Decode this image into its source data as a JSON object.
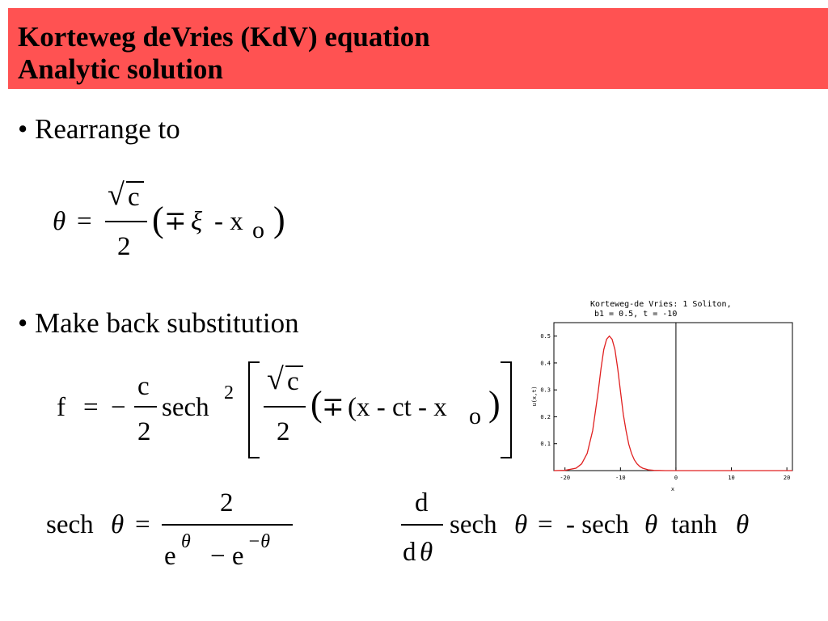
{
  "header": {
    "title_line1": "Korteweg deVries (KdV) equation",
    "title_line2": "Analytic solution",
    "background_color": "#ff5252"
  },
  "bullets": {
    "rearrange": "• Rearrange to",
    "back_substitution": "• Make back substitution"
  },
  "equation_theta": {
    "lhs": "θ",
    "equals": "=",
    "sqrt_sign": "√",
    "numerator": "c",
    "denominator": "2",
    "open_paren": "(",
    "minus_plus": "∓",
    "xi": "ξ",
    "minus_x": "- x",
    "subscript": "o",
    "close_paren": ")"
  },
  "equation_f": {
    "lhs": "f",
    "equals": "=",
    "minus": "−",
    "numerator": "c",
    "denominator": "2",
    "sech": "sech",
    "power": "2",
    "inner_sqrt_sign": "√",
    "inner_numerator": "c",
    "inner_denominator": "2",
    "open_paren": "(",
    "minus_plus": "∓",
    "inner_expression": "(x - ct - x",
    "subscript": "o",
    "close_paren": ")"
  },
  "equation_sech_def": {
    "lhs": "sech",
    "theta": "θ",
    "equals": "=",
    "numerator": "2",
    "denominator_e1": "e",
    "denominator_exp1": "θ",
    "denominator_minus": "− e",
    "denominator_exp2": "−θ"
  },
  "equation_derivative": {
    "numerator": "d",
    "denominator_d": "d",
    "denominator_theta": "θ",
    "sech": "sech",
    "theta": "θ",
    "equals": "=",
    "rhs_minus_sech": "- sech",
    "rhs_theta1": "θ",
    "rhs_tanh": "tanh",
    "rhs_theta2": "θ"
  },
  "chart_data": {
    "type": "line",
    "title_line1": "Korteweg-de Vries: 1 Soliton,",
    "title_line2": "b1 = 0.5, t = -10",
    "xlabel": "x",
    "ylabel": "u(x,t)",
    "xlim": [
      -22,
      21
    ],
    "ylim": [
      0,
      0.55
    ],
    "x_ticks": [
      -20,
      -10,
      0,
      10,
      20
    ],
    "y_ticks": [
      0.1,
      0.2,
      0.3,
      0.4,
      0.5
    ],
    "x_tick_labels": [
      "-20",
      "-10",
      "0",
      "10",
      "20"
    ],
    "y_tick_labels": [
      "0.1",
      "0.2",
      "0.3",
      "0.4",
      "0.5"
    ],
    "vertical_line_x": 0,
    "grid": false,
    "series_color": "#e02020",
    "series": [
      {
        "x": [
          -22,
          -20,
          -18,
          -17,
          -16,
          -15,
          -14,
          -13.5,
          -13,
          -12.5,
          -12,
          -11.5,
          -11,
          -10.5,
          -10,
          -9.5,
          -9,
          -8.5,
          -8,
          -7.5,
          -7,
          -6.5,
          -6,
          -5,
          -4,
          -3,
          -2,
          -1,
          0,
          2,
          5,
          10,
          15,
          21
        ],
        "y": [
          0,
          0.001,
          0.009,
          0.025,
          0.064,
          0.149,
          0.296,
          0.38,
          0.45,
          0.488,
          0.5,
          0.488,
          0.45,
          0.38,
          0.296,
          0.21,
          0.149,
          0.098,
          0.064,
          0.04,
          0.025,
          0.015,
          0.009,
          0.003,
          0.001,
          0.0005,
          0,
          0,
          0,
          0,
          0,
          0,
          0,
          0
        ]
      }
    ]
  }
}
